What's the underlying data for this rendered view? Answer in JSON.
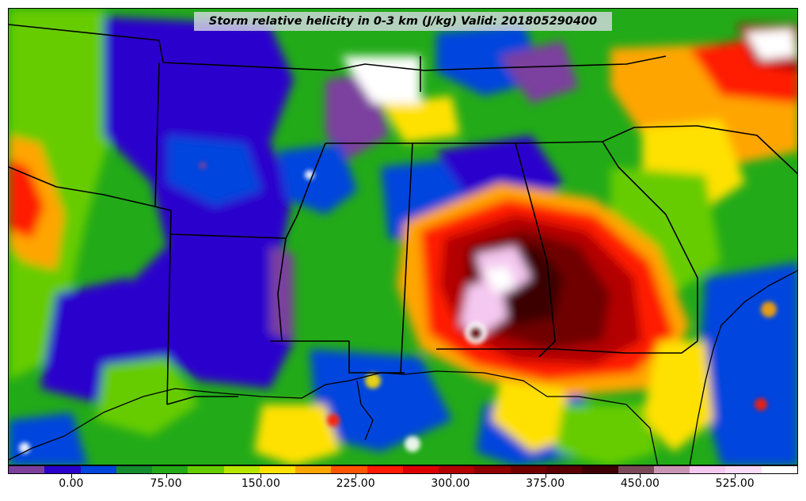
{
  "title": "Storm relative helicity in 0-3 km (J/kg) Valid: 201805290400",
  "colorbar": {
    "min": -50,
    "max": 575,
    "step": 25,
    "labels": [
      "0.00",
      "75.00",
      "150.00",
      "225.00",
      "300.00",
      "375.00",
      "450.00",
      "525.00"
    ],
    "label_values": [
      0,
      75,
      150,
      225,
      300,
      375,
      450,
      525
    ],
    "colors": [
      "#7b3f9e",
      "#2a00cc",
      "#0044dd",
      "#128c2e",
      "#22aa18",
      "#66cc00",
      "#b8e600",
      "#ffe100",
      "#ffa500",
      "#ff5500",
      "#ff1a00",
      "#dd0000",
      "#b30000",
      "#8f0000",
      "#700000",
      "#5a0000",
      "#3d0000",
      "#7a4a5a",
      "#c896b4",
      "#f4c8f0",
      "#f9dcf9",
      "#ffffff"
    ]
  },
  "map": {
    "region": "South-central and southeastern United States",
    "background_color": "#22aa18",
    "max_color": "#5a0000"
  }
}
